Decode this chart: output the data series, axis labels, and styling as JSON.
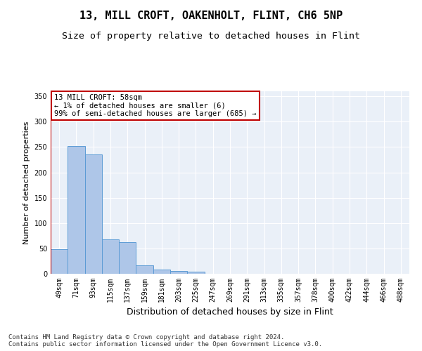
{
  "title": "13, MILL CROFT, OAKENHOLT, FLINT, CH6 5NP",
  "subtitle": "Size of property relative to detached houses in Flint",
  "xlabel": "Distribution of detached houses by size in Flint",
  "ylabel": "Number of detached properties",
  "categories": [
    "49sqm",
    "71sqm",
    "93sqm",
    "115sqm",
    "137sqm",
    "159sqm",
    "181sqm",
    "203sqm",
    "225sqm",
    "247sqm",
    "269sqm",
    "291sqm",
    "313sqm",
    "335sqm",
    "357sqm",
    "378sqm",
    "400sqm",
    "422sqm",
    "444sqm",
    "466sqm",
    "488sqm"
  ],
  "values": [
    48,
    252,
    236,
    68,
    63,
    16,
    9,
    5,
    4,
    0,
    0,
    0,
    0,
    0,
    0,
    0,
    0,
    0,
    0,
    0,
    0
  ],
  "bar_color": "#aec6e8",
  "bar_edge_color": "#5b9bd5",
  "highlight_color": "#c00000",
  "annotation_text": "13 MILL CROFT: 58sqm\n← 1% of detached houses are smaller (6)\n99% of semi-detached houses are larger (685) →",
  "annotation_box_color": "#ffffff",
  "annotation_box_edge": "#c00000",
  "ylim": [
    0,
    360
  ],
  "yticks": [
    0,
    50,
    100,
    150,
    200,
    250,
    300,
    350
  ],
  "background_color": "#eaf0f8",
  "footer": "Contains HM Land Registry data © Crown copyright and database right 2024.\nContains public sector information licensed under the Open Government Licence v3.0.",
  "title_fontsize": 11,
  "subtitle_fontsize": 9.5,
  "xlabel_fontsize": 9,
  "ylabel_fontsize": 8,
  "tick_fontsize": 7,
  "annotation_fontsize": 7.5,
  "footer_fontsize": 6.5
}
